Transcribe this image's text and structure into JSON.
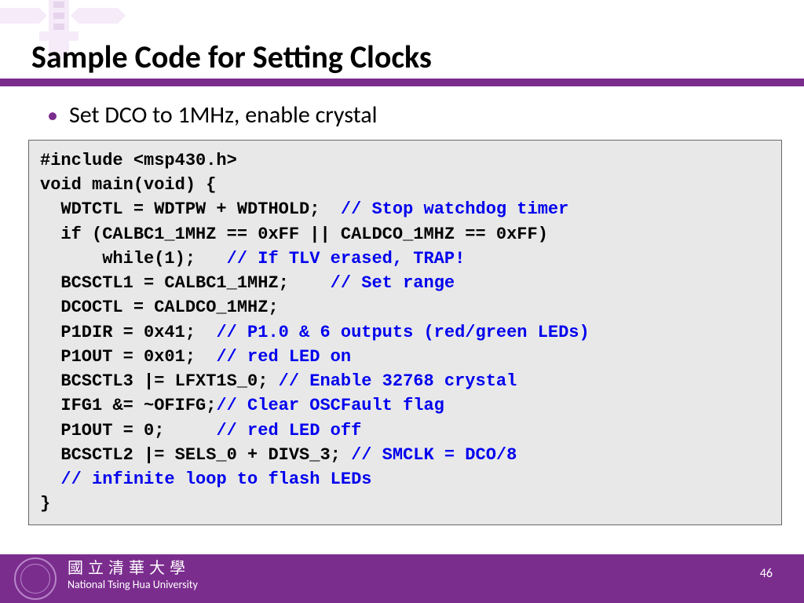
{
  "colors": {
    "accent": "#7b2d8e",
    "logo_light": "#e3c7ef",
    "code_bg": "#e8e8e8",
    "comment": "#0000ee",
    "white": "#ffffff",
    "black": "#000000"
  },
  "title": "Sample Code for Setting Clocks",
  "bullet": {
    "marker": "•",
    "text": "Set DCO to 1MHz, enable crystal"
  },
  "code": {
    "lines": [
      {
        "code": "#include <msp430.h>"
      },
      {
        "code": "void main(void) {"
      },
      {
        "code": "  WDTCTL = WDTPW + WDTHOLD;  ",
        "comment": "// Stop watchdog timer"
      },
      {
        "code": "  if (CALBC1_1MHZ == 0xFF || CALDCO_1MHZ == 0xFF)"
      },
      {
        "code": "      while(1);   ",
        "comment": "// If TLV erased, TRAP!"
      },
      {
        "code": "  BCSCTL1 = CALBC1_1MHZ;    ",
        "comment": "// Set range"
      },
      {
        "code": "  DCOCTL = CALDCO_1MHZ;"
      },
      {
        "code": "  P1DIR = 0x41;  ",
        "comment": "// P1.0 & 6 outputs (red/green LEDs)"
      },
      {
        "code": "  P1OUT = 0x01;  ",
        "comment": "// red LED on"
      },
      {
        "code": "  BCSCTL3 |= LFXT1S_0; ",
        "comment": "// Enable 32768 crystal"
      },
      {
        "code": "  IFG1 &= ~OFIFG;",
        "comment": "// Clear OSCFault flag"
      },
      {
        "code": "  P1OUT = 0;     ",
        "comment": "// red LED off"
      },
      {
        "code": "  BCSCTL2 |= SELS_0 + DIVS_3; ",
        "comment": "// SMCLK = DCO/8"
      },
      {
        "code": "  ",
        "comment": "// infinite loop to flash LEDs"
      },
      {
        "code": "}"
      }
    ]
  },
  "footer": {
    "chinese": "國立清華大學",
    "english": "National Tsing Hua University",
    "page": "46"
  }
}
